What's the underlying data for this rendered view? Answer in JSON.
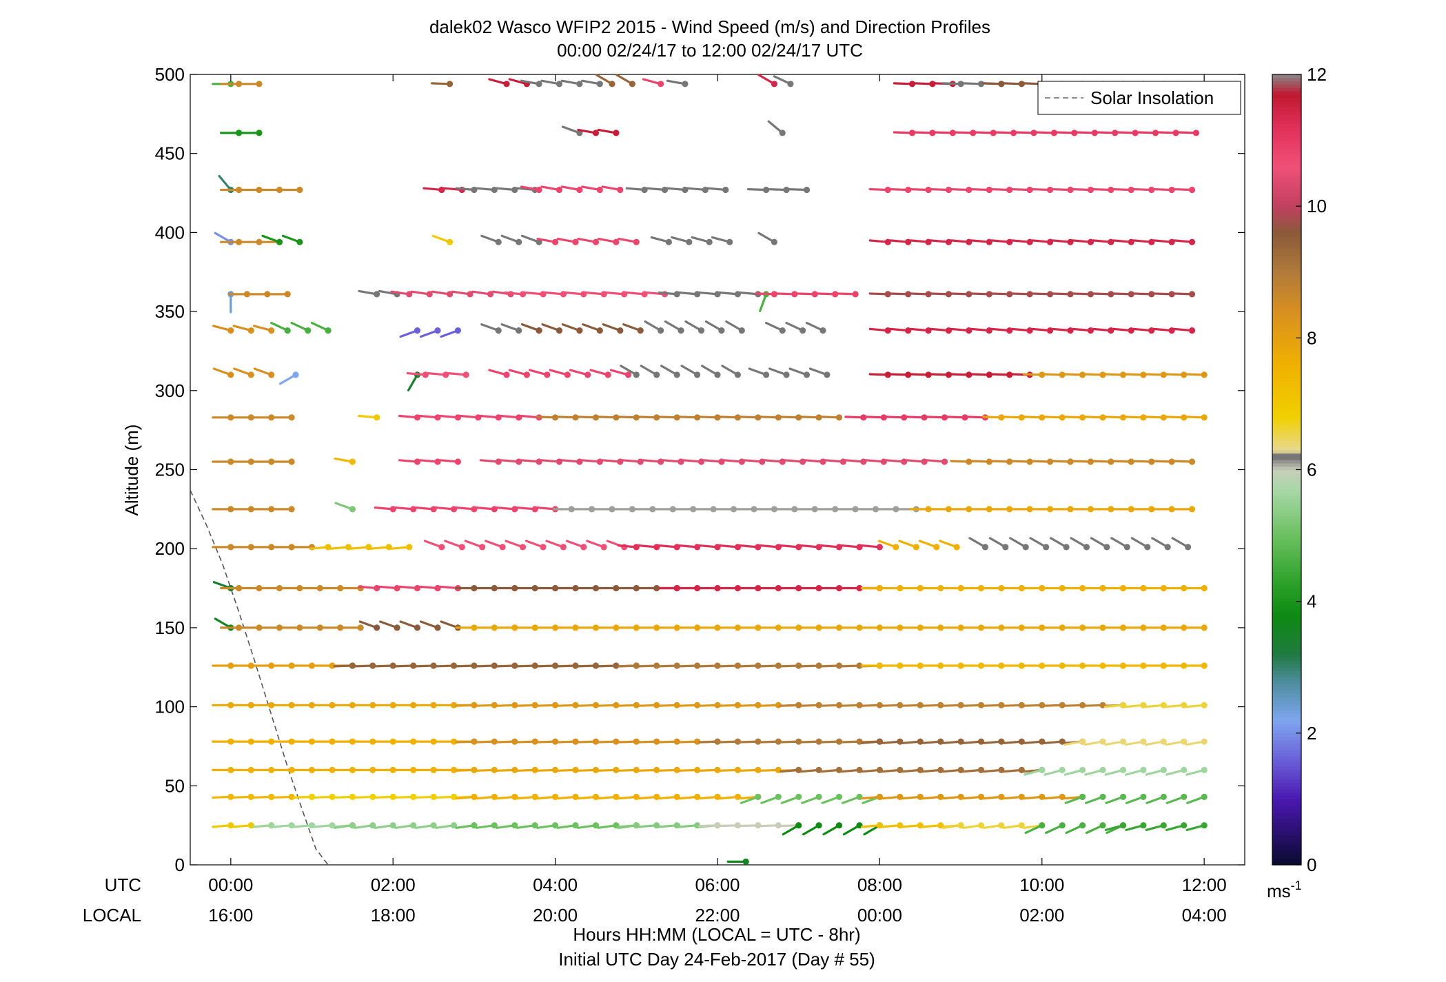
{
  "title": {
    "line1": "dalek02 Wasco WFIP2 2015 - Wind Speed (m/s) and Direction Profiles",
    "line2": "00:00 02/24/17 to 12:00 02/24/17  UTC"
  },
  "axes": {
    "ylabel": "Altitude (m)",
    "xlabel_line1": "Hours HH:MM  (LOCAL = UTC - 8hr)",
    "xlabel_line2": "Initial UTC Day 24-Feb-2017 (Day # 55)",
    "row_label_utc": "UTC",
    "row_label_local": "LOCAL",
    "x_ticks_utc": [
      "00:00",
      "02:00",
      "04:00",
      "06:00",
      "08:00",
      "10:00",
      "12:00"
    ],
    "x_ticks_local": [
      "16:00",
      "18:00",
      "20:00",
      "22:00",
      "00:00",
      "02:00",
      "04:00"
    ],
    "y_ticks": [
      "0",
      "50",
      "100",
      "150",
      "200",
      "250",
      "300",
      "350",
      "400",
      "450",
      "500"
    ]
  },
  "legend": {
    "label": "Solar Insolation",
    "position": "top-right"
  },
  "colorbar": {
    "ticks": [
      "0",
      "2",
      "4",
      "6",
      "8",
      "10",
      "12"
    ],
    "unit_base": "ms",
    "unit_exp": "-1"
  },
  "chart_data": {
    "type": "wind-barb-profile",
    "title": "dalek02 Wasco WFIP2 2015 - Wind Speed (m/s) and Direction Profiles",
    "xlabel": "Hours HH:MM  (LOCAL = UTC - 8hr)",
    "ylabel": "Altitude (m)",
    "xlim_hours": [
      -0.5,
      12.5
    ],
    "ylim_m": [
      0,
      500
    ],
    "colorbar_range_ms": [
      0,
      12
    ],
    "time_step_hours": 0.25,
    "heights_m": [
      25,
      43,
      60,
      78,
      101,
      126,
      150,
      175,
      201,
      225,
      255,
      283,
      310,
      338,
      361,
      394,
      427,
      463,
      494
    ],
    "solar_insolation_line": [
      [
        -0.5,
        237
      ],
      [
        -0.3,
        215
      ],
      [
        -0.1,
        190
      ],
      [
        0.1,
        160
      ],
      [
        0.3,
        128
      ],
      [
        0.5,
        95
      ],
      [
        0.7,
        62
      ],
      [
        0.9,
        32
      ],
      [
        1.05,
        10
      ],
      [
        1.2,
        0
      ]
    ],
    "profiles": [
      {
        "height": 25,
        "segments": [
          {
            "t0": 0,
            "t1": 0.5,
            "speed": 7.0,
            "dir": 265
          },
          {
            "t0": 0.5,
            "t1": 1.5,
            "speed": 5.6,
            "dir": 265
          },
          {
            "t0": 1.5,
            "t1": 3.0,
            "speed": 5.4,
            "dir": 262
          },
          {
            "t0": 3.0,
            "t1": 5.0,
            "speed": 5.0,
            "dir": 262
          },
          {
            "t0": 5.0,
            "t1": 6.0,
            "speed": 5.3,
            "dir": 265
          },
          {
            "t0": 6.0,
            "t1": 7.0,
            "speed": 6.0,
            "dir": 268
          },
          {
            "t0": 7.0,
            "t1": 8.0,
            "speed": 3.8,
            "dir": 240
          },
          {
            "t0": 8.0,
            "t1": 9.0,
            "speed": 7.2,
            "dir": 265
          },
          {
            "t0": 9.0,
            "t1": 10.0,
            "speed": 6.6,
            "dir": 262
          },
          {
            "t0": 10.0,
            "t1": 11.0,
            "speed": 4.6,
            "dir": 245
          },
          {
            "t0": 11.0,
            "t1": 12.0,
            "speed": 4.4,
            "dir": 255
          }
        ]
      },
      {
        "height": 43,
        "segments": [
          {
            "t0": 0,
            "t1": 1.0,
            "speed": 7.4,
            "dir": 268
          },
          {
            "t0": 1.0,
            "t1": 3.0,
            "speed": 6.8,
            "dir": 268
          },
          {
            "t0": 3.0,
            "t1": 6.5,
            "speed": 7.6,
            "dir": 265
          },
          {
            "t0": 6.5,
            "t1": 8.0,
            "speed": 5.0,
            "dir": 250
          },
          {
            "t0": 8.0,
            "t1": 10.5,
            "speed": 8.2,
            "dir": 265
          },
          {
            "t0": 10.5,
            "t1": 12.0,
            "speed": 4.8,
            "dir": 250
          }
        ]
      },
      {
        "height": 60,
        "segments": [
          {
            "t0": 0,
            "t1": 3.0,
            "speed": 7.6,
            "dir": 270
          },
          {
            "t0": 3.0,
            "t1": 7.0,
            "speed": 7.8,
            "dir": 268
          },
          {
            "t0": 7.0,
            "t1": 10.0,
            "speed": 9.2,
            "dir": 265
          },
          {
            "t0": 10.0,
            "t1": 12.0,
            "speed": 5.6,
            "dir": 255
          }
        ]
      },
      {
        "height": 78,
        "segments": [
          {
            "t0": 0,
            "t1": 3.0,
            "speed": 7.6,
            "dir": 270
          },
          {
            "t0": 3.0,
            "t1": 6.0,
            "speed": 8.4,
            "dir": 268
          },
          {
            "t0": 6.0,
            "t1": 8.0,
            "speed": 9.0,
            "dir": 268
          },
          {
            "t0": 8.0,
            "t1": 10.5,
            "speed": 9.4,
            "dir": 265
          },
          {
            "t0": 10.5,
            "t1": 12.0,
            "speed": 6.4,
            "dir": 260
          }
        ]
      },
      {
        "height": 101,
        "segments": [
          {
            "t0": 0,
            "t1": 3.0,
            "speed": 7.8,
            "dir": 270
          },
          {
            "t0": 3.0,
            "t1": 7.0,
            "speed": 8.2,
            "dir": 268
          },
          {
            "t0": 7.0,
            "t1": 11.0,
            "speed": 8.8,
            "dir": 268
          },
          {
            "t0": 11.0,
            "t1": 12.0,
            "speed": 6.6,
            "dir": 265
          }
        ]
      },
      {
        "height": 126,
        "segments": [
          {
            "t0": 0,
            "t1": 1.5,
            "speed": 8.0,
            "dir": 270
          },
          {
            "t0": 1.5,
            "t1": 5.0,
            "speed": 9.4,
            "dir": 268
          },
          {
            "t0": 5.0,
            "t1": 8.0,
            "speed": 9.0,
            "dir": 268
          },
          {
            "t0": 8.0,
            "t1": 12.0,
            "speed": 7.4,
            "dir": 270
          }
        ]
      },
      {
        "height": 150,
        "segments": [
          {
            "t0": 0,
            "t1": 0.1,
            "speed": 3.6,
            "dir": 300
          },
          {
            "t0": 0.1,
            "t1": 1.8,
            "speed": 8.6,
            "dir": 270
          },
          {
            "t0": 1.8,
            "t1": 3.0,
            "speed": 9.6,
            "dir": 290
          },
          {
            "t0": 3.0,
            "t1": 12.0,
            "speed": 7.8,
            "dir": 270
          }
        ]
      },
      {
        "height": 175,
        "segments": [
          {
            "t0": 0,
            "t1": 0.1,
            "speed": 3.4,
            "dir": 290
          },
          {
            "t0": 0.1,
            "t1": 1.8,
            "speed": 8.6,
            "dir": 270
          },
          {
            "t0": 1.8,
            "t1": 3.0,
            "speed": 10.8,
            "dir": 275
          },
          {
            "t0": 3.0,
            "t1": 5.5,
            "speed": 9.6,
            "dir": 270
          },
          {
            "t0": 5.5,
            "t1": 8.0,
            "speed": 11.4,
            "dir": 270
          },
          {
            "t0": 8.0,
            "t1": 12.0,
            "speed": 7.6,
            "dir": 270
          }
        ]
      },
      {
        "height": 201,
        "segments": [
          {
            "t0": 0,
            "t1": 1.2,
            "speed": 8.6,
            "dir": 270
          },
          {
            "t0": 1.2,
            "t1": 2.2,
            "speed": 7.2,
            "dir": 265
          },
          {
            "t0": 2.6,
            "t1": 5.0,
            "speed": 10.6,
            "dir": 290
          },
          {
            "t0": 5.0,
            "t1": 8.2,
            "speed": 11.2,
            "dir": 275
          },
          {
            "t0": 8.2,
            "t1": 9.0,
            "speed": 7.6,
            "dir": 290
          },
          {
            "t0": 9.3,
            "t1": 12.0,
            "speed": 6.2,
            "dir": 300
          }
        ]
      },
      {
        "height": 225,
        "segments": [
          {
            "t0": 0,
            "t1": 0.9,
            "speed": 8.6,
            "dir": 270
          },
          {
            "t0": 1.5,
            "t1": 1.6,
            "speed": 5.2,
            "dir": 290
          },
          {
            "t0": 2.0,
            "t1": 4.2,
            "speed": 10.8,
            "dir": 275
          },
          {
            "t0": 4.2,
            "t1": 8.6,
            "speed": 6.1,
            "dir": 270
          },
          {
            "t0": 8.6,
            "t1": 12.0,
            "speed": 7.8,
            "dir": 270
          }
        ]
      },
      {
        "height": 255,
        "segments": [
          {
            "t0": 0,
            "t1": 0.9,
            "speed": 8.6,
            "dir": 270
          },
          {
            "t0": 1.5,
            "t1": 1.6,
            "speed": 7.4,
            "dir": 280
          },
          {
            "t0": 2.3,
            "t1": 2.9,
            "speed": 10.8,
            "dir": 275
          },
          {
            "t0": 3.3,
            "t1": 8.8,
            "speed": 10.4,
            "dir": 275
          },
          {
            "t0": 9.1,
            "t1": 12.0,
            "speed": 8.6,
            "dir": 272
          }
        ]
      },
      {
        "height": 283,
        "segments": [
          {
            "t0": 0,
            "t1": 0.9,
            "speed": 8.6,
            "dir": 270
          },
          {
            "t0": 1.8,
            "t1": 1.9,
            "speed": 7.0,
            "dir": 275
          },
          {
            "t0": 2.3,
            "t1": 4.0,
            "speed": 10.8,
            "dir": 275
          },
          {
            "t0": 4.0,
            "t1": 7.6,
            "speed": 8.8,
            "dir": 272
          },
          {
            "t0": 7.8,
            "t1": 9.5,
            "speed": 11.0,
            "dir": 272
          },
          {
            "t0": 9.5,
            "t1": 12.0,
            "speed": 7.8,
            "dir": 272
          }
        ]
      },
      {
        "height": 310,
        "segments": [
          {
            "t0": 0,
            "t1": 0.6,
            "speed": 8.4,
            "dir": 290
          },
          {
            "t0": 0.8,
            "t1": 0.9,
            "speed": 2.2,
            "dir": 240
          },
          {
            "t0": 2.3,
            "t1": 2.4,
            "speed": 3.4,
            "dir": 210
          },
          {
            "t0": 2.4,
            "t1": 3.0,
            "speed": 10.6,
            "dir": 275
          },
          {
            "t0": 3.4,
            "t1": 5.0,
            "speed": 10.8,
            "dir": 285
          },
          {
            "t0": 5.0,
            "t1": 6.3,
            "speed": 6.2,
            "dir": 300
          },
          {
            "t0": 6.6,
            "t1": 7.4,
            "speed": 6.2,
            "dir": 290
          },
          {
            "t0": 8.1,
            "t1": 10.0,
            "speed": 11.6,
            "dir": 272
          },
          {
            "t0": 10.0,
            "t1": 12.0,
            "speed": 8.2,
            "dir": 272
          }
        ]
      },
      {
        "height": 338,
        "segments": [
          {
            "t0": 0,
            "t1": 0.6,
            "speed": 8.4,
            "dir": 285
          },
          {
            "t0": 0.7,
            "t1": 1.3,
            "speed": 4.6,
            "dir": 295
          },
          {
            "t0": 2.3,
            "t1": 2.8,
            "speed": 1.6,
            "dir": 250
          },
          {
            "t0": 3.3,
            "t1": 3.8,
            "speed": 6.2,
            "dir": 290
          },
          {
            "t0": 3.8,
            "t1": 5.1,
            "speed": 9.6,
            "dir": 290
          },
          {
            "t0": 5.3,
            "t1": 6.3,
            "speed": 6.2,
            "dir": 300
          },
          {
            "t0": 6.8,
            "t1": 7.4,
            "speed": 6.2,
            "dir": 295
          },
          {
            "t0": 8.1,
            "t1": 12.0,
            "speed": 11.4,
            "dir": 275
          }
        ]
      },
      {
        "height": 361,
        "segments": [
          {
            "t0": 0,
            "t1": 0.2,
            "speed": 2.4,
            "dir": 180
          },
          {
            "t0": 0.2,
            "t1": 0.9,
            "speed": 8.6,
            "dir": 270
          },
          {
            "t0": 1.8,
            "t1": 2.2,
            "speed": 6.2,
            "dir": 280
          },
          {
            "t0": 2.2,
            "t1": 3.6,
            "speed": 10.4,
            "dir": 278
          },
          {
            "t0": 3.6,
            "t1": 5.5,
            "speed": 10.6,
            "dir": 275
          },
          {
            "t0": 5.5,
            "t1": 6.6,
            "speed": 6.2,
            "dir": 275
          },
          {
            "t0": 6.6,
            "t1": 6.7,
            "speed": 4.6,
            "dir": 200
          },
          {
            "t0": 6.7,
            "t1": 7.7,
            "speed": 10.8,
            "dir": 272
          },
          {
            "t0": 8.1,
            "t1": 12.0,
            "speed": 9.8,
            "dir": 272
          }
        ]
      },
      {
        "height": 394,
        "segments": [
          {
            "t0": 0,
            "t1": 0.1,
            "speed": 2.0,
            "dir": 300
          },
          {
            "t0": 0.1,
            "t1": 0.6,
            "speed": 8.6,
            "dir": 270
          },
          {
            "t0": 0.6,
            "t1": 1.0,
            "speed": 4.0,
            "dir": 290
          },
          {
            "t0": 2.7,
            "t1": 2.8,
            "speed": 7.0,
            "dir": 290
          },
          {
            "t0": 3.3,
            "t1": 4.0,
            "speed": 6.2,
            "dir": 290
          },
          {
            "t0": 4.0,
            "t1": 5.0,
            "speed": 10.8,
            "dir": 280
          },
          {
            "t0": 5.4,
            "t1": 6.3,
            "speed": 6.2,
            "dir": 285
          },
          {
            "t0": 6.7,
            "t1": 6.9,
            "speed": 6.2,
            "dir": 300
          },
          {
            "t0": 8.1,
            "t1": 12.0,
            "speed": 11.4,
            "dir": 275
          }
        ]
      },
      {
        "height": 427,
        "segments": [
          {
            "t0": 0,
            "t1": 0.1,
            "speed": 3.0,
            "dir": 320
          },
          {
            "t0": 0.1,
            "t1": 0.9,
            "speed": 8.6,
            "dir": 270
          },
          {
            "t0": 2.6,
            "t1": 3.0,
            "speed": 11.4,
            "dir": 275
          },
          {
            "t0": 3.0,
            "t1": 3.8,
            "speed": 6.2,
            "dir": 275
          },
          {
            "t0": 3.8,
            "t1": 5.0,
            "speed": 10.8,
            "dir": 280
          },
          {
            "t0": 5.1,
            "t1": 6.3,
            "speed": 6.2,
            "dir": 275
          },
          {
            "t0": 6.6,
            "t1": 7.3,
            "speed": 6.2,
            "dir": 272
          },
          {
            "t0": 8.1,
            "t1": 12.0,
            "speed": 10.8,
            "dir": 272
          }
        ]
      },
      {
        "height": 463,
        "segments": [
          {
            "t0": 0.1,
            "t1": 0.4,
            "speed": 4.0,
            "dir": 270
          },
          {
            "t0": 4.3,
            "t1": 4.5,
            "speed": 6.2,
            "dir": 290
          },
          {
            "t0": 4.5,
            "t1": 4.9,
            "speed": 11.6,
            "dir": 280
          },
          {
            "t0": 6.8,
            "t1": 6.9,
            "speed": 6.2,
            "dir": 310
          },
          {
            "t0": 8.4,
            "t1": 12.0,
            "speed": 11.0,
            "dir": 272
          }
        ]
      },
      {
        "height": 494,
        "segments": [
          {
            "t0": 0,
            "t1": 0.1,
            "speed": 4.6,
            "dir": 270
          },
          {
            "t0": 0.1,
            "t1": 0.4,
            "speed": 8.6,
            "dir": 270
          },
          {
            "t0": 2.7,
            "t1": 2.8,
            "speed": 9.4,
            "dir": 272
          },
          {
            "t0": 3.4,
            "t1": 3.8,
            "speed": 11.6,
            "dir": 285
          },
          {
            "t0": 3.8,
            "t1": 4.7,
            "speed": 6.2,
            "dir": 280
          },
          {
            "t0": 4.7,
            "t1": 5.1,
            "speed": 9.4,
            "dir": 300
          },
          {
            "t0": 5.3,
            "t1": 5.5,
            "speed": 10.8,
            "dir": 285
          },
          {
            "t0": 5.6,
            "t1": 5.8,
            "speed": 6.2,
            "dir": 280
          },
          {
            "t0": 6.7,
            "t1": 6.9,
            "speed": 11.4,
            "dir": 300
          },
          {
            "t0": 6.9,
            "t1": 7.1,
            "speed": 6.2,
            "dir": 295
          },
          {
            "t0": 8.4,
            "t1": 9.0,
            "speed": 11.6,
            "dir": 272
          },
          {
            "t0": 9.0,
            "t1": 9.5,
            "speed": 6.2,
            "dir": 272
          },
          {
            "t0": 9.5,
            "t1": 12.0,
            "speed": 9.6,
            "dir": 272
          }
        ]
      }
    ],
    "isolated_points": [
      {
        "t": 6.35,
        "height": 2,
        "speed": 3.6,
        "dir": 270
      }
    ]
  }
}
